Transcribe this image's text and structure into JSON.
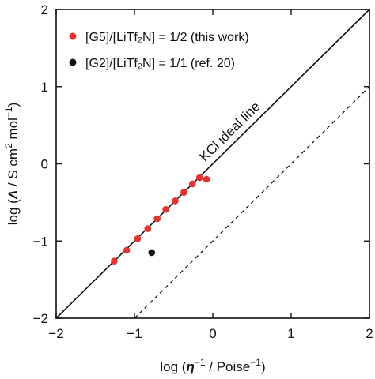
{
  "chart_data": {
    "type": "scatter",
    "title": "",
    "xlabel": {
      "prefix": "log (",
      "symbol": "η",
      "sup1": "−1",
      "unit": " / Poise",
      "sup2": "−1",
      "suffix": ")"
    },
    "ylabel": {
      "prefix": "log (",
      "symbol": "Λ",
      "unit": " / S cm",
      "sup1": "2",
      "unit2": " mol",
      "sup2": "−1",
      "suffix": ")"
    },
    "xlim": [
      -2,
      2
    ],
    "ylim": [
      -2,
      2
    ],
    "xticks": [
      {
        "value": -2,
        "label": "−2"
      },
      {
        "value": -1,
        "label": "−1"
      },
      {
        "value": 0,
        "label": "0"
      },
      {
        "value": 1,
        "label": "1"
      },
      {
        "value": 2,
        "label": "2"
      }
    ],
    "yticks": [
      {
        "value": -2,
        "label": "−2"
      },
      {
        "value": -1,
        "label": "−1"
      },
      {
        "value": 0,
        "label": "0"
      },
      {
        "value": 1,
        "label": "1"
      },
      {
        "value": 2,
        "label": "2"
      }
    ],
    "grid": false,
    "legend_position": "top-left",
    "series": [
      {
        "name": "[G5]/[LiTf₂N] = 1/2 (this work)",
        "color": "#e8322d",
        "x": [
          -1.26,
          -1.1,
          -0.96,
          -0.83,
          -0.71,
          -0.6,
          -0.48,
          -0.37,
          -0.26,
          -0.17,
          -0.08
        ],
        "y": [
          -1.26,
          -1.12,
          -0.97,
          -0.84,
          -0.71,
          -0.59,
          -0.48,
          -0.37,
          -0.26,
          -0.18,
          -0.2
        ]
      },
      {
        "name": "[G2]/[LiTf₂N] = 1/1 (ref. 20)",
        "color": "#111111",
        "x": [
          -0.78
        ],
        "y": [
          -1.15
        ]
      }
    ],
    "reference_lines": [
      {
        "label": "KCl ideal line",
        "style": "solid",
        "x": [
          -2,
          2
        ],
        "y": [
          -2,
          2
        ]
      },
      {
        "label": "",
        "style": "dashed",
        "x": [
          -1,
          2
        ],
        "y": [
          -2,
          1
        ]
      }
    ]
  }
}
